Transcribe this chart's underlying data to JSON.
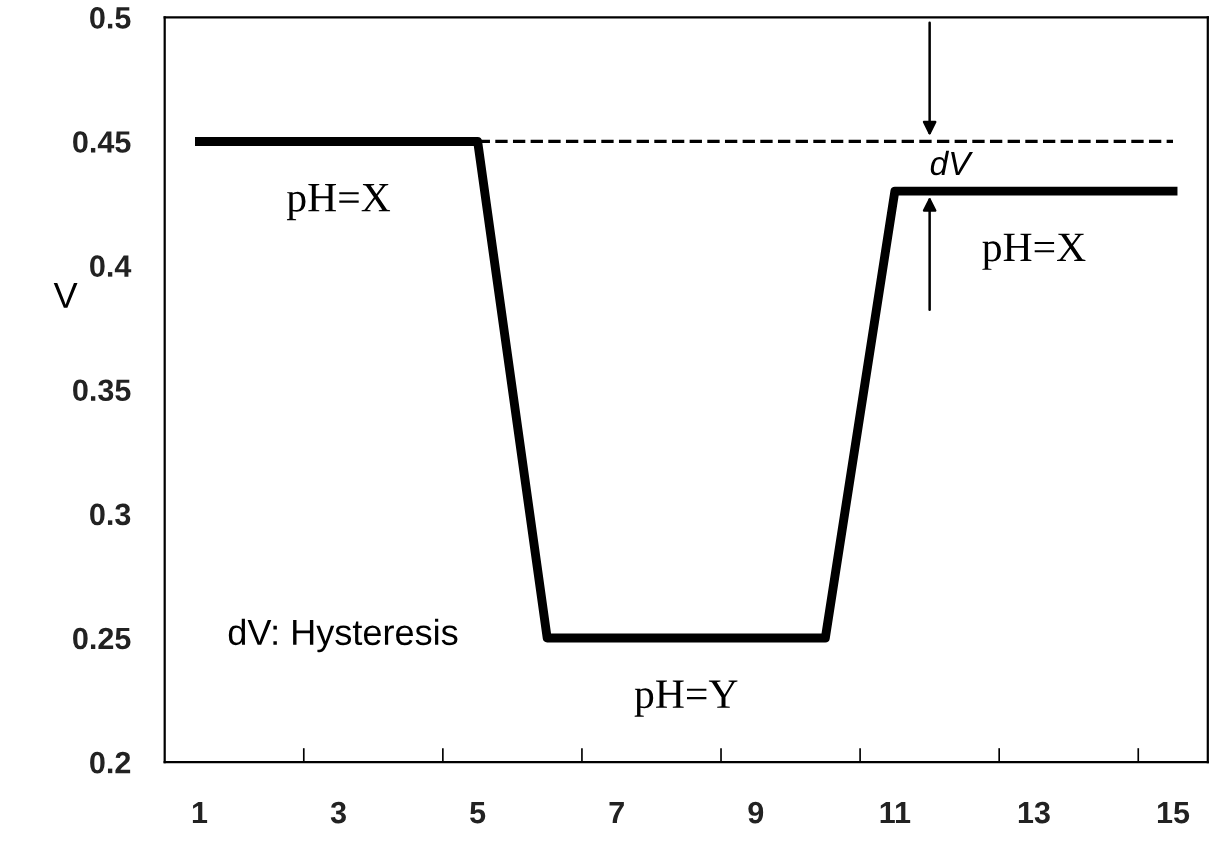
{
  "chart_data": {
    "type": "line",
    "ylabel": "V",
    "series": [
      {
        "color": "#000000",
        "x": [
          1,
          5,
          6,
          10,
          11,
          15
        ],
        "values": [
          0.45,
          0.45,
          0.25,
          0.25,
          0.43,
          0.43
        ],
        "line_style": "solid"
      },
      {
        "color": "#000000",
        "x": [
          5,
          15
        ],
        "values": [
          0.45,
          0.45
        ],
        "line_style": "dashed"
      }
    ],
    "xlim": [
      0.5,
      15.5
    ],
    "xticks": [
      1,
      {
        "value": 2.5,
        "label": null
      },
      3,
      {
        "value": 4.5,
        "label": null
      },
      5,
      {
        "value": 6.5,
        "label": null
      },
      7,
      {
        "value": 8.5,
        "label": null
      },
      9,
      {
        "value": 10.5,
        "label": null
      },
      11,
      {
        "value": 12.5,
        "label": null
      },
      13,
      {
        "value": 14.5,
        "label": null
      },
      15
    ],
    "ylim": [
      0.2,
      0.5
    ],
    "yticks": [
      0.2,
      0.25,
      0.3,
      0.35,
      0.4,
      0.45,
      0.5
    ],
    "grid": false,
    "legend": false,
    "marker": "none",
    "annotations": [
      {
        "text": "pH=X",
        "x": 3,
        "y": 0.45
      },
      {
        "text": "pH=Y",
        "x": 8,
        "y": 0.25
      },
      {
        "text": "pH=X",
        "x": 13,
        "y": 0.43
      },
      "dV",
      "dV: Hysteresis"
    ]
  }
}
